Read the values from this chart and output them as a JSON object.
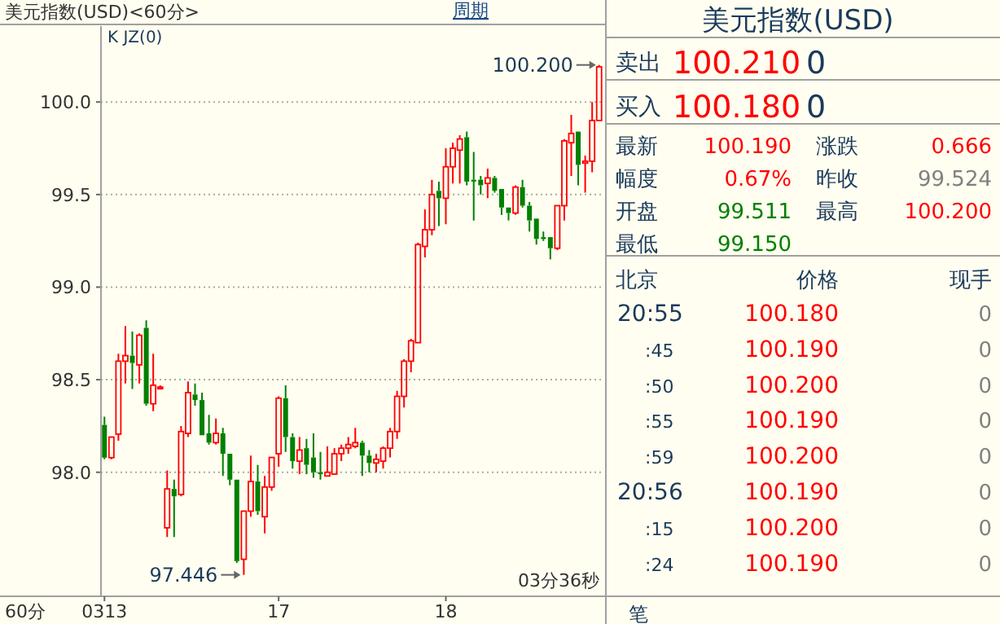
{
  "chart_data": [
    {
      "type": "candlestick",
      "title": "美元指数(USD)<60分>",
      "subtitle": "K JZ(0)",
      "categories": [
        "0313",
        null,
        null,
        null,
        null,
        null,
        null,
        null,
        null,
        null,
        null,
        null,
        null,
        null,
        null,
        null,
        null,
        null,
        null,
        null,
        null,
        null,
        null,
        null,
        null,
        "17",
        null,
        null,
        null,
        null,
        null,
        null,
        null,
        null,
        null,
        null,
        null,
        null,
        null,
        null,
        null,
        null,
        null,
        null,
        null,
        null,
        null,
        null,
        null,
        "18",
        null,
        null,
        null,
        null,
        null,
        null,
        null,
        null,
        null,
        null,
        null,
        null,
        null,
        null,
        null,
        null,
        null,
        null,
        null,
        null,
        null,
        null
      ],
      "ohlc": [
        [
          98.256,
          98.3,
          98.07,
          98.079
        ],
        [
          98.079,
          98.19,
          98.07,
          98.19
        ],
        [
          98.206,
          98.64,
          98.17,
          98.6
        ],
        [
          98.6,
          98.79,
          98.48,
          98.63
        ],
        [
          98.63,
          98.76,
          98.45,
          98.59
        ],
        [
          98.58,
          98.75,
          98.48,
          98.74
        ],
        [
          98.78,
          98.82,
          98.36,
          98.37
        ],
        [
          98.37,
          98.64,
          98.33,
          98.47
        ],
        [
          98.46,
          98.47,
          98.45,
          98.46
        ],
        [
          97.7,
          98.01,
          97.65,
          97.91
        ],
        [
          97.91,
          97.96,
          97.65,
          97.87
        ],
        [
          97.88,
          98.25,
          97.87,
          98.22
        ],
        [
          98.21,
          98.49,
          98.19,
          98.43
        ],
        [
          98.42,
          98.48,
          98.36,
          98.39
        ],
        [
          98.39,
          98.43,
          98.2,
          98.2
        ],
        [
          98.21,
          98.31,
          98.15,
          98.16
        ],
        [
          98.16,
          98.29,
          98.15,
          98.21
        ],
        [
          98.21,
          98.24,
          97.98,
          98.1
        ],
        [
          98.1,
          98.1,
          97.93,
          97.96
        ],
        [
          97.96,
          97.96,
          97.51,
          97.52
        ],
        [
          97.53,
          97.79,
          97.446,
          97.79
        ],
        [
          97.79,
          98.09,
          97.76,
          97.95
        ],
        [
          97.95,
          98.04,
          97.77,
          97.79
        ],
        [
          97.76,
          97.98,
          97.67,
          97.92
        ],
        [
          97.92,
          98.08,
          97.9,
          98.08
        ],
        [
          98.1,
          98.41,
          98.03,
          98.4
        ],
        [
          98.4,
          98.47,
          98.11,
          98.19
        ],
        [
          98.19,
          98.21,
          98.02,
          98.06
        ],
        [
          98.06,
          98.19,
          97.99,
          98.12
        ],
        [
          98.13,
          98.18,
          97.99,
          98.04
        ],
        [
          98.08,
          98.21,
          97.97,
          98.0
        ],
        [
          98.0,
          98.11,
          97.96,
          97.99
        ],
        [
          97.98,
          98.14,
          97.98,
          98.0
        ],
        [
          97.99,
          98.13,
          97.99,
          98.1
        ],
        [
          98.1,
          98.15,
          98.06,
          98.13
        ],
        [
          98.13,
          98.19,
          98.1,
          98.15
        ],
        [
          98.14,
          98.24,
          98.13,
          98.16
        ],
        [
          98.16,
          98.17,
          97.98,
          98.09
        ],
        [
          98.09,
          98.12,
          98.0,
          98.05
        ],
        [
          98.05,
          98.1,
          98.0,
          98.07
        ],
        [
          98.06,
          98.14,
          98.02,
          98.13
        ],
        [
          98.13,
          98.24,
          98.08,
          98.22
        ],
        [
          98.22,
          98.44,
          98.18,
          98.41
        ],
        [
          98.41,
          98.61,
          98.35,
          98.6
        ],
        [
          98.6,
          98.72,
          98.54,
          98.71
        ],
        [
          98.7,
          99.24,
          98.7,
          99.23
        ],
        [
          99.22,
          99.42,
          99.16,
          99.31
        ],
        [
          99.31,
          99.58,
          99.28,
          99.5
        ],
        [
          99.52,
          99.57,
          99.33,
          99.48
        ],
        [
          99.48,
          99.75,
          99.34,
          99.65
        ],
        [
          99.65,
          99.78,
          99.56,
          99.75
        ],
        [
          99.74,
          99.82,
          99.56,
          99.8
        ],
        [
          99.81,
          99.84,
          99.55,
          99.57
        ],
        [
          99.58,
          99.73,
          99.36,
          99.57
        ],
        [
          99.58,
          99.6,
          99.5,
          99.55
        ],
        [
          99.56,
          99.64,
          99.48,
          99.59
        ],
        [
          99.59,
          99.6,
          99.51,
          99.52
        ],
        [
          99.53,
          99.53,
          99.39,
          99.43
        ],
        [
          99.43,
          99.43,
          99.36,
          99.4
        ],
        [
          99.4,
          99.55,
          99.39,
          99.54
        ],
        [
          99.54,
          99.58,
          99.43,
          99.44
        ],
        [
          99.44,
          99.46,
          99.3,
          99.36
        ],
        [
          99.37,
          99.37,
          99.23,
          99.26
        ],
        [
          99.27,
          99.3,
          99.25,
          99.26
        ],
        [
          99.27,
          99.27,
          99.15,
          99.21
        ],
        [
          99.21,
          99.44,
          99.2,
          99.44
        ],
        [
          99.44,
          99.8,
          99.36,
          99.79
        ],
        [
          99.78,
          99.93,
          99.6,
          99.83
        ],
        [
          99.84,
          99.84,
          99.55,
          99.66
        ],
        [
          99.67,
          99.71,
          99.51,
          99.68
        ],
        [
          99.68,
          100.0,
          99.62,
          99.9
        ],
        [
          99.9,
          100.2,
          99.9,
          100.19
        ]
      ],
      "ylim": [
        97.33,
        100.41
      ],
      "yticks": [
        {
          "value": 98,
          "label": "98.0"
        },
        {
          "value": 98.5,
          "label": "98.5"
        },
        {
          "value": 99,
          "label": "99.0"
        },
        {
          "value": 99.5,
          "label": "99.5"
        },
        {
          "value": 100,
          "label": "100.0"
        }
      ],
      "grid": "y",
      "annotations": [
        "周期",
        "60分",
        "03分36秒",
        "97.446",
        "100.200"
      ]
    },
    {
      "type": "other",
      "title": "美元指数(USD)",
      "annotations": [
        "卖出",
        "100.210",
        "0",
        "买入",
        "100.180",
        "0",
        "最新",
        "100.190",
        "涨跌",
        "0.666",
        "幅度",
        "0.67%",
        "昨收",
        "99.524",
        "开盘",
        "99.511",
        "最高",
        "100.200",
        "最低",
        "99.150",
        "北京",
        "价格",
        "现手",
        "20:55",
        "100.180",
        "0",
        ":45",
        "100.190",
        "0",
        ":50",
        "100.200",
        "0",
        ":55",
        "100.190",
        "0",
        ":59",
        "100.200",
        "0",
        "20:56",
        "100.190",
        "0",
        ":15",
        "100.200",
        "0",
        ":24",
        "100.190",
        "0",
        "笔"
      ]
    }
  ]
}
